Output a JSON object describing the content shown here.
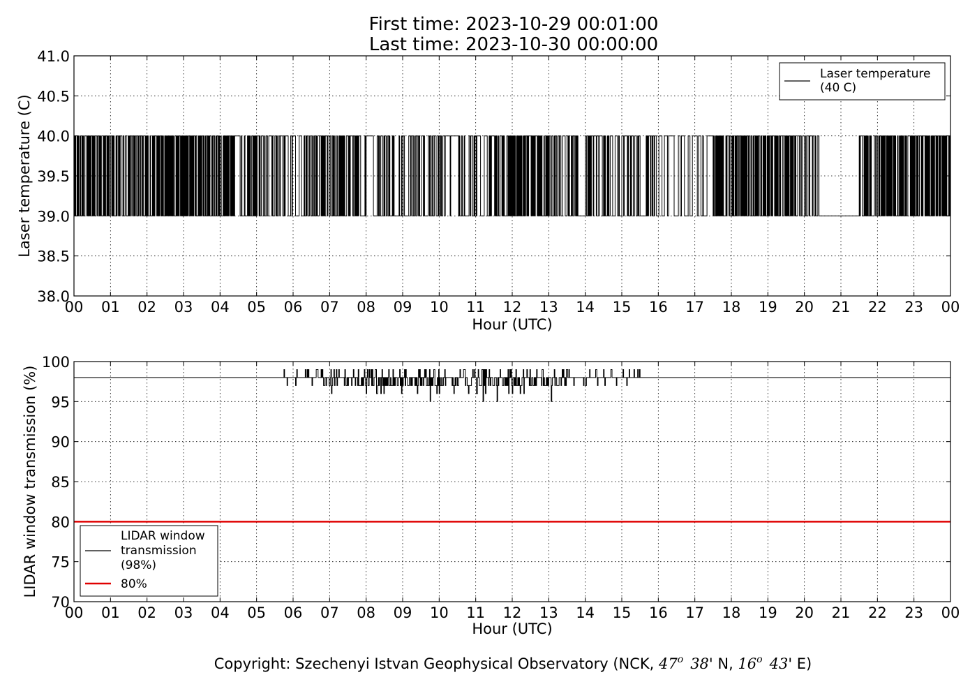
{
  "header": {
    "title_line1": "First time: 2023-10-29 00:01:00",
    "title_line2": "Last time: 2023-10-30 00:00:00"
  },
  "footer": {
    "copyright_prefix": "Copyright: Szechenyi Istvan Geophysical Observatory (NCK, ",
    "lat_deg": "47",
    "lat_min": "38",
    "lat_suffix": "' N, ",
    "lon_deg": "16",
    "lon_min": "43",
    "lon_suffix": "' E)",
    "degree_mark": "o"
  },
  "chart_data": [
    {
      "type": "line",
      "title": "",
      "xlabel": "Hour (UTC)",
      "ylabel": "Laser temperature (C)",
      "xlim": [
        0,
        24
      ],
      "ylim": [
        38.0,
        41.0
      ],
      "x_ticks": [
        "00",
        "01",
        "02",
        "03",
        "04",
        "05",
        "06",
        "07",
        "08",
        "09",
        "10",
        "11",
        "12",
        "13",
        "14",
        "15",
        "16",
        "17",
        "18",
        "19",
        "20",
        "21",
        "22",
        "23",
        "00"
      ],
      "y_ticks": [
        "38.0",
        "38.5",
        "39.0",
        "39.5",
        "40.0",
        "40.5",
        "41.0"
      ],
      "grid": true,
      "legend_position": "top-right",
      "series": [
        {
          "name": "Laser temperature\n(40 C)",
          "color": "#000000",
          "levels": [
            39.0,
            40.0
          ],
          "description_values": "temperature toggles between 39.0 and 40.0",
          "segments": [
            {
              "start": 0.0,
              "end": 4.4,
              "density": 0.75
            },
            {
              "start": 4.4,
              "end": 4.55,
              "density": 0.0,
              "level": 40.0
            },
            {
              "start": 4.55,
              "end": 6.0,
              "density": 0.55
            },
            {
              "start": 6.0,
              "end": 6.3,
              "density": 0.15
            },
            {
              "start": 6.3,
              "end": 7.8,
              "density": 0.7
            },
            {
              "start": 7.8,
              "end": 8.3,
              "density": 0.2
            },
            {
              "start": 8.3,
              "end": 10.2,
              "density": 0.6
            },
            {
              "start": 10.2,
              "end": 11.3,
              "density": 0.35
            },
            {
              "start": 11.3,
              "end": 13.8,
              "density": 0.7
            },
            {
              "start": 13.8,
              "end": 14.0,
              "density": 0.0,
              "level": 39.0
            },
            {
              "start": 14.0,
              "end": 16.0,
              "density": 0.45
            },
            {
              "start": 16.0,
              "end": 17.5,
              "density": 0.12
            },
            {
              "start": 17.5,
              "end": 20.4,
              "density": 0.7
            },
            {
              "start": 20.4,
              "end": 21.5,
              "density": 0.0,
              "level": 39.0
            },
            {
              "start": 21.5,
              "end": 24.0,
              "density": 0.7
            }
          ]
        }
      ]
    },
    {
      "type": "line",
      "title": "",
      "xlabel": "Hour (UTC)",
      "ylabel": "LIDAR window transmission (%)",
      "xlim": [
        0,
        24
      ],
      "ylim": [
        70,
        100
      ],
      "x_ticks": [
        "00",
        "01",
        "02",
        "03",
        "04",
        "05",
        "06",
        "07",
        "08",
        "09",
        "10",
        "11",
        "12",
        "13",
        "14",
        "15",
        "16",
        "17",
        "18",
        "19",
        "20",
        "21",
        "22",
        "23",
        "00"
      ],
      "y_ticks": [
        "70",
        "75",
        "80",
        "85",
        "90",
        "95",
        "100"
      ],
      "grid": true,
      "legend_position": "bottom-left",
      "series": [
        {
          "name": "LIDAR window\ntransmission\n(98%)",
          "color": "#000000",
          "baseline": 98,
          "active_range": [
            5.45,
            15.5
          ],
          "values_range": [
            95,
            99
          ]
        },
        {
          "name": "80%",
          "color": "#e00000",
          "constant": 80
        }
      ]
    }
  ]
}
